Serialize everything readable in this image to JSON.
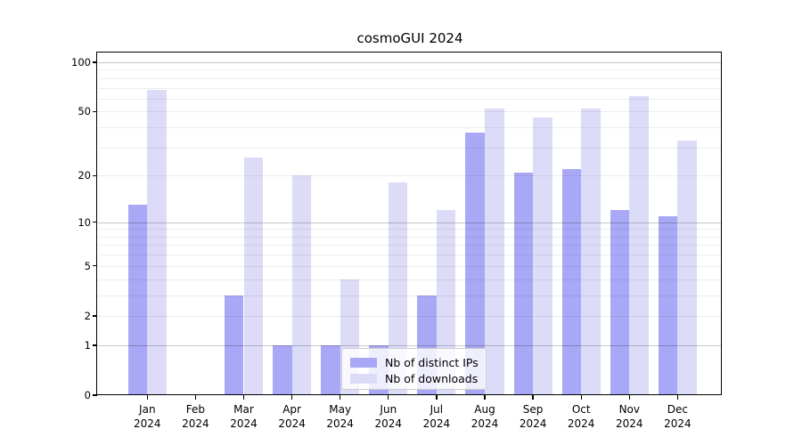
{
  "title": "cosmoGUI 2024",
  "legend": {
    "items": [
      {
        "label": "Nb of distinct IPs",
        "color": "#a8a8f6"
      },
      {
        "label": "Nb of downloads",
        "color": "#dcdcf9"
      }
    ]
  },
  "chart_data": {
    "type": "bar",
    "title": "cosmoGUI 2024",
    "categories": [
      "Jan",
      "Feb",
      "Mar",
      "Apr",
      "May",
      "Jun",
      "Jul",
      "Aug",
      "Sep",
      "Oct",
      "Nov",
      "Dec"
    ],
    "category_year": "2024",
    "series": [
      {
        "name": "Nb of distinct IPs",
        "color": "#a8a8f6",
        "values": [
          13,
          0,
          3,
          1,
          1,
          1,
          3,
          37,
          21,
          22,
          12,
          11
        ]
      },
      {
        "name": "Nb of downloads",
        "color": "#dcdcf9",
        "values": [
          68,
          0,
          26,
          20,
          4,
          18,
          12,
          52,
          46,
          52,
          62,
          33
        ]
      }
    ],
    "yscale": "log(1+x)",
    "yticks": [
      0,
      1,
      2,
      5,
      10,
      20,
      50,
      100
    ],
    "major_gridlines": [
      1,
      10,
      100
    ],
    "minor_gridlines": [
      2,
      3,
      4,
      5,
      6,
      7,
      8,
      9,
      20,
      30,
      40,
      50,
      60,
      70,
      80,
      90
    ],
    "ylim": [
      0,
      113
    ],
    "grid": true,
    "legend_position": "lower center",
    "xlabel": "",
    "ylabel": ""
  }
}
